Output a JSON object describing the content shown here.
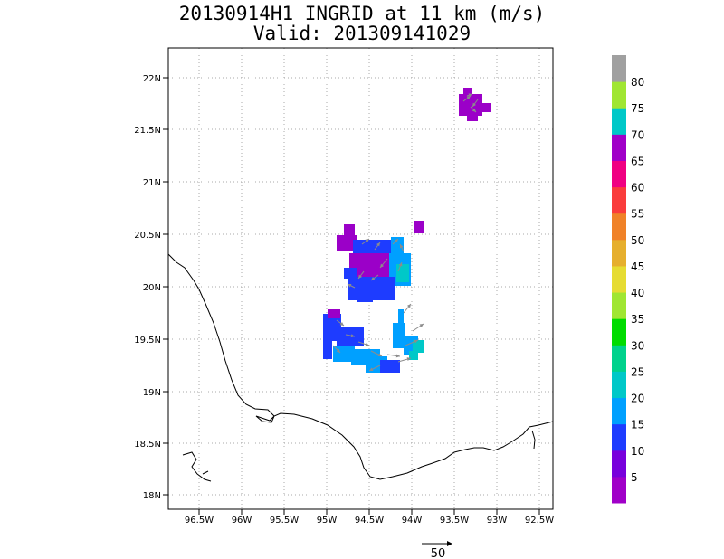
{
  "title": "20130914H1 INGRID at 11 km (m/s)",
  "subtitle": "Valid: 201309141029",
  "lat_labels": [
    "18N",
    "18.5N",
    "19N",
    "19.5N",
    "20N",
    "20.5N",
    "21N",
    "21.5N",
    "22N"
  ],
  "lon_labels": [
    "96.5W",
    "96W",
    "95.5W",
    "95W",
    "94.5W",
    "94W",
    "93.5W",
    "93W",
    "92.5W"
  ],
  "colorbar": {
    "labels": [
      "5",
      "10",
      "15",
      "20",
      "25",
      "30",
      "35",
      "40",
      "45",
      "50",
      "55",
      "60",
      "65",
      "70",
      "75",
      "80"
    ],
    "colors": [
      "#a000c8",
      "#7800dc",
      "#1e3cff",
      "#00a0ff",
      "#00c8c8",
      "#00d28c",
      "#00dc00",
      "#a0e632",
      "#e6dc32",
      "#e6af2d",
      "#f08228",
      "#fa3c3c",
      "#f00082",
      "#a000c8",
      "#00c8c8",
      "#a0e632",
      "#a0a0a0"
    ]
  },
  "vector_scale_label": "50",
  "colors": {
    "purple": "#9b00c8",
    "blue": "#1e3cff",
    "lightblue": "#00a0ff",
    "cyan": "#00c8c8",
    "arrow": "#8c8c8c"
  }
}
